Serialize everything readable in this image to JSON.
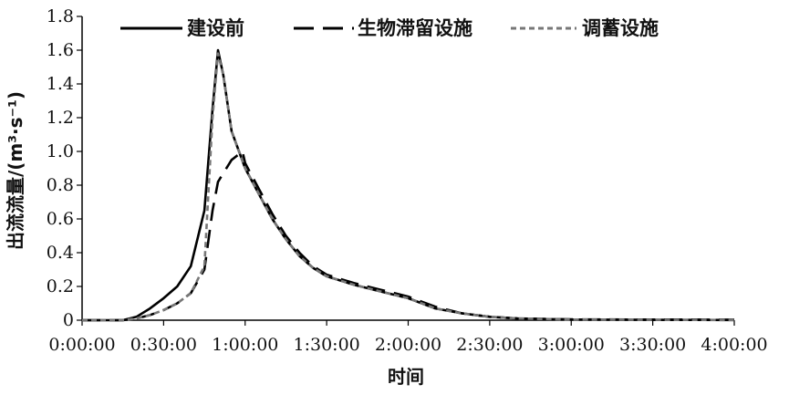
{
  "chart_data": {
    "type": "line",
    "xlabel": "时间",
    "ylabel": "出流流量/(m³·s⁻¹)",
    "ylim": [
      0,
      1.8
    ],
    "xlim_minutes": [
      0,
      240
    ],
    "yticks": [
      "0",
      "0.2",
      "0.4",
      "0.6",
      "0.8",
      "1.0",
      "1.2",
      "1.4",
      "1.6",
      "1.8"
    ],
    "xticks": [
      {
        "minutes": 0,
        "label": "0:00:00"
      },
      {
        "minutes": 30,
        "label": "0:30:00"
      },
      {
        "minutes": 60,
        "label": "1:00:00"
      },
      {
        "minutes": 90,
        "label": "1:30:00"
      },
      {
        "minutes": 120,
        "label": "2:00:00"
      },
      {
        "minutes": 150,
        "label": "2:30:00"
      },
      {
        "minutes": 180,
        "label": "3:00:00"
      },
      {
        "minutes": 210,
        "label": "3:30:00"
      },
      {
        "minutes": 240,
        "label": "4:00:00"
      }
    ],
    "grid": false,
    "legend_position": "top",
    "series": [
      {
        "name": "建设前",
        "style": "solid",
        "color": "#000000",
        "points": [
          [
            0,
            0
          ],
          [
            15,
            0
          ],
          [
            20,
            0.02
          ],
          [
            25,
            0.07
          ],
          [
            30,
            0.13
          ],
          [
            35,
            0.2
          ],
          [
            40,
            0.32
          ],
          [
            45,
            0.65
          ],
          [
            48,
            1.25
          ],
          [
            50,
            1.6
          ],
          [
            52,
            1.45
          ],
          [
            55,
            1.12
          ],
          [
            60,
            0.9
          ],
          [
            65,
            0.75
          ],
          [
            70,
            0.6
          ],
          [
            75,
            0.48
          ],
          [
            80,
            0.38
          ],
          [
            85,
            0.31
          ],
          [
            90,
            0.26
          ],
          [
            100,
            0.21
          ],
          [
            110,
            0.17
          ],
          [
            120,
            0.13
          ],
          [
            130,
            0.07
          ],
          [
            140,
            0.04
          ],
          [
            150,
            0.02
          ],
          [
            160,
            0.01
          ],
          [
            180,
            0.004
          ],
          [
            210,
            0.002
          ],
          [
            240,
            0.001
          ]
        ]
      },
      {
        "name": "生物滞留设施",
        "style": "dashed",
        "color": "#000000",
        "points": [
          [
            0,
            0
          ],
          [
            15,
            0
          ],
          [
            20,
            0.01
          ],
          [
            25,
            0.03
          ],
          [
            30,
            0.06
          ],
          [
            35,
            0.1
          ],
          [
            40,
            0.16
          ],
          [
            45,
            0.3
          ],
          [
            48,
            0.65
          ],
          [
            50,
            0.82
          ],
          [
            55,
            0.95
          ],
          [
            59,
            1.0
          ],
          [
            60,
            0.93
          ],
          [
            65,
            0.78
          ],
          [
            70,
            0.63
          ],
          [
            75,
            0.5
          ],
          [
            80,
            0.4
          ],
          [
            85,
            0.32
          ],
          [
            90,
            0.27
          ],
          [
            100,
            0.22
          ],
          [
            110,
            0.18
          ],
          [
            120,
            0.14
          ],
          [
            130,
            0.08
          ],
          [
            140,
            0.04
          ],
          [
            150,
            0.02
          ],
          [
            160,
            0.01
          ],
          [
            180,
            0.005
          ],
          [
            210,
            0.004
          ],
          [
            240,
            0.003
          ]
        ]
      },
      {
        "name": "调蓄设施",
        "style": "dotted",
        "color": "#777777",
        "points": [
          [
            0,
            0
          ],
          [
            15,
            0
          ],
          [
            20,
            0.01
          ],
          [
            25,
            0.03
          ],
          [
            30,
            0.06
          ],
          [
            35,
            0.1
          ],
          [
            40,
            0.16
          ],
          [
            45,
            0.32
          ],
          [
            48,
            1.2
          ],
          [
            50,
            1.58
          ],
          [
            52,
            1.45
          ],
          [
            55,
            1.12
          ],
          [
            60,
            0.9
          ],
          [
            65,
            0.75
          ],
          [
            70,
            0.6
          ],
          [
            75,
            0.48
          ],
          [
            80,
            0.38
          ],
          [
            85,
            0.31
          ],
          [
            90,
            0.26
          ],
          [
            100,
            0.21
          ],
          [
            110,
            0.17
          ],
          [
            120,
            0.13
          ],
          [
            130,
            0.07
          ],
          [
            140,
            0.04
          ],
          [
            150,
            0.02
          ],
          [
            160,
            0.01
          ],
          [
            180,
            0.004
          ],
          [
            210,
            0.002
          ],
          [
            240,
            0.001
          ]
        ]
      }
    ]
  }
}
